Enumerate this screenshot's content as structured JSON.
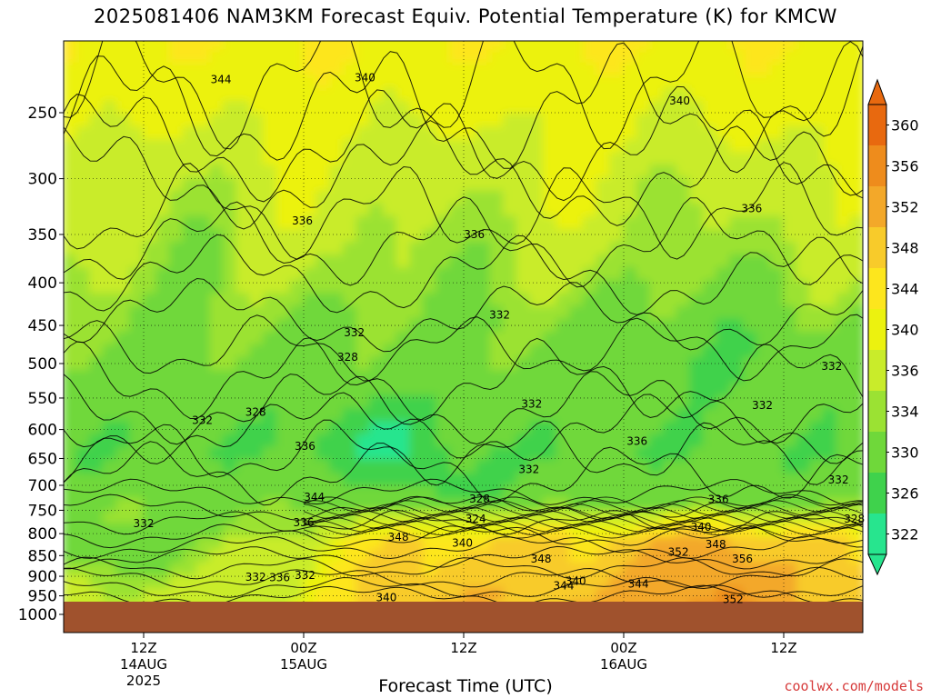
{
  "chart_data": {
    "type": "heatmap",
    "title": "2025081406 NAM3KM Forecast Equiv. Potential Temperature (K) for KMCW",
    "xlabel": "Forecast Time (UTC)",
    "ylabel": "",
    "credit": "coolwx.com/models",
    "y_axis": {
      "scale": "pressure-log-inverted",
      "ticks": [
        250,
        300,
        350,
        400,
        450,
        500,
        550,
        600,
        650,
        700,
        750,
        800,
        850,
        900,
        950,
        1000
      ],
      "ylim": [
        1000,
        200
      ]
    },
    "x_axis": {
      "ticks": [
        {
          "label": "12Z",
          "sub": "14AUG",
          "sub2": "2025",
          "hour": 12
        },
        {
          "label": "00Z",
          "sub": "15AUG",
          "sub2": "",
          "hour": 24
        },
        {
          "label": "12Z",
          "sub": "",
          "sub2": "",
          "hour": 36
        },
        {
          "label": "00Z",
          "sub": "16AUG",
          "sub2": "",
          "hour": 48
        },
        {
          "label": "12Z",
          "sub": "",
          "sub2": "",
          "hour": 60
        }
      ],
      "xlim": [
        6,
        66
      ]
    },
    "colorbar": {
      "levels": [
        322,
        326,
        330,
        334,
        336,
        340,
        344,
        348,
        352,
        356,
        360
      ],
      "colors": [
        "#27e58e",
        "#3fd24c",
        "#6fd83a",
        "#9be233",
        "#c9ec2a",
        "#ecf20f",
        "#fde61d",
        "#f8cb2a",
        "#f3a829",
        "#ee8c1c",
        "#e8690f"
      ]
    },
    "contour_labels": [
      {
        "text": "344",
        "hour": 17.8,
        "p": 228
      },
      {
        "text": "340",
        "hour": 28.6,
        "p": 227
      },
      {
        "text": "340",
        "hour": 52.2,
        "p": 242
      },
      {
        "text": "336",
        "hour": 23.9,
        "p": 337
      },
      {
        "text": "336",
        "hour": 36.8,
        "p": 350
      },
      {
        "text": "336",
        "hour": 57.6,
        "p": 326
      },
      {
        "text": "332",
        "hour": 27.8,
        "p": 459
      },
      {
        "text": "332",
        "hour": 38.7,
        "p": 437
      },
      {
        "text": "328",
        "hour": 27.3,
        "p": 491
      },
      {
        "text": "328",
        "hour": 20.4,
        "p": 572
      },
      {
        "text": "332",
        "hour": 16.4,
        "p": 585
      },
      {
        "text": "332",
        "hour": 41.1,
        "p": 559
      },
      {
        "text": "332",
        "hour": 58.4,
        "p": 561
      },
      {
        "text": "332",
        "hour": 63.6,
        "p": 504
      },
      {
        "text": "336",
        "hour": 24.1,
        "p": 628
      },
      {
        "text": "336",
        "hour": 49.0,
        "p": 620
      },
      {
        "text": "332",
        "hour": 40.9,
        "p": 670
      },
      {
        "text": "332",
        "hour": 64.1,
        "p": 690
      },
      {
        "text": "328",
        "hour": 37.2,
        "p": 727
      },
      {
        "text": "324",
        "hour": 36.9,
        "p": 768
      },
      {
        "text": "344",
        "hour": 24.8,
        "p": 723
      },
      {
        "text": "336",
        "hour": 24.0,
        "p": 776
      },
      {
        "text": "332",
        "hour": 12.0,
        "p": 778
      },
      {
        "text": "328",
        "hour": 65.3,
        "p": 768
      },
      {
        "text": "336",
        "hour": 55.1,
        "p": 728
      },
      {
        "text": "340",
        "hour": 53.8,
        "p": 786
      },
      {
        "text": "348",
        "hour": 31.1,
        "p": 808
      },
      {
        "text": "340",
        "hour": 35.9,
        "p": 821
      },
      {
        "text": "348",
        "hour": 54.9,
        "p": 824
      },
      {
        "text": "352",
        "hour": 52.1,
        "p": 842
      },
      {
        "text": "356",
        "hour": 56.9,
        "p": 858
      },
      {
        "text": "348",
        "hour": 41.8,
        "p": 858
      },
      {
        "text": "332",
        "hour": 20.4,
        "p": 902
      },
      {
        "text": "336",
        "hour": 22.2,
        "p": 903
      },
      {
        "text": "332",
        "hour": 24.1,
        "p": 898
      },
      {
        "text": "340",
        "hour": 44.4,
        "p": 912
      },
      {
        "text": "344",
        "hour": 49.1,
        "p": 919
      },
      {
        "text": "344",
        "hour": 43.5,
        "p": 924
      },
      {
        "text": "340",
        "hour": 30.2,
        "p": 955
      },
      {
        "text": "352",
        "hour": 56.2,
        "p": 960
      }
    ],
    "surface_pressure": 967,
    "grid": true,
    "legend": "right"
  }
}
